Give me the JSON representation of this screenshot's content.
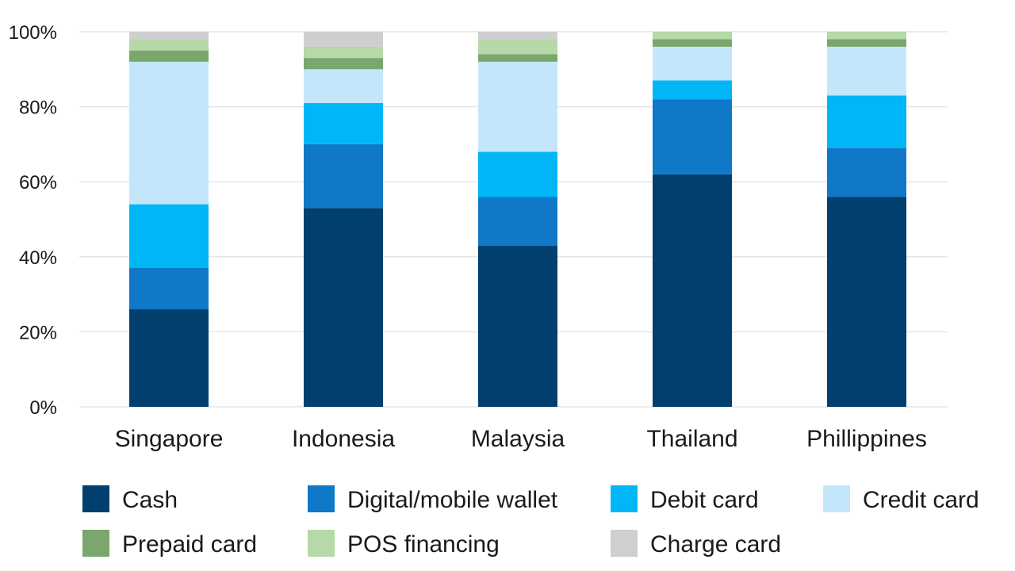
{
  "chart_data": {
    "type": "bar",
    "stacked": true,
    "title": "",
    "xlabel": "",
    "ylabel": "",
    "ylim": [
      0,
      100
    ],
    "yticks": [
      0,
      20,
      40,
      60,
      80,
      100
    ],
    "ytick_suffix": "%",
    "grid": true,
    "legend_position": "bottom",
    "categories": [
      "Singapore",
      "Indonesia",
      "Malaysia",
      "Thailand",
      "Phillippines"
    ],
    "series": [
      {
        "name": "Cash",
        "color": "#003f6e",
        "values": [
          26,
          53,
          43,
          62,
          56
        ]
      },
      {
        "name": "Digital/mobile wallet",
        "color": "#0f78c8",
        "values": [
          11,
          17,
          13,
          20,
          13
        ]
      },
      {
        "name": "Debit card",
        "color": "#00b6f7",
        "values": [
          17,
          11,
          12,
          5,
          14
        ]
      },
      {
        "name": "Credit card",
        "color": "#c4e6fb",
        "values": [
          38,
          9,
          24,
          9,
          13
        ]
      },
      {
        "name": "Prepaid card",
        "color": "#7ba66c",
        "values": [
          3,
          3,
          2,
          2,
          2
        ]
      },
      {
        "name": "POS financing",
        "color": "#b5d9a7",
        "values": [
          3,
          3,
          4,
          2,
          2
        ]
      },
      {
        "name": "Charge card",
        "color": "#cfcfcf",
        "values": [
          2,
          4,
          2,
          0,
          0
        ]
      }
    ]
  }
}
